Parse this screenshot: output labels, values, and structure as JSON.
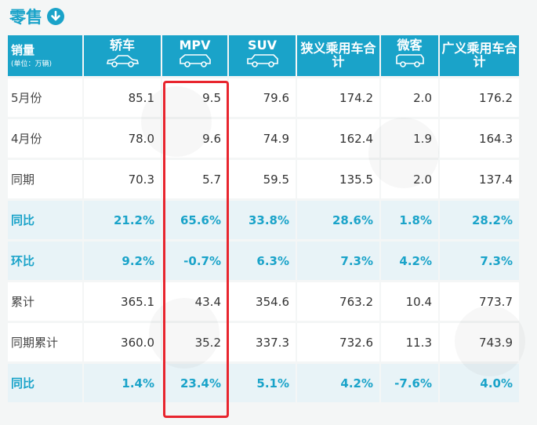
{
  "title": "零售",
  "header": {
    "row_label": "销量",
    "unit": "(单位：万辆)",
    "columns": [
      "轿车",
      "MPV",
      "SUV",
      "狭义乘用车合计",
      "微客",
      "广义乘用车合计"
    ]
  },
  "rows": [
    {
      "label": "5月份",
      "values": [
        "85.1",
        "9.5",
        "79.6",
        "174.2",
        "2.0",
        "176.2"
      ]
    },
    {
      "label": "4月份",
      "values": [
        "78.0",
        "9.6",
        "74.9",
        "162.4",
        "1.9",
        "164.3"
      ]
    },
    {
      "label": "同期",
      "values": [
        "70.3",
        "5.7",
        "59.5",
        "135.5",
        "2.0",
        "137.4"
      ]
    },
    {
      "label": "同比",
      "values": [
        "21.2%",
        "65.6%",
        "33.8%",
        "28.6%",
        "1.8%",
        "28.2%"
      ]
    },
    {
      "label": "环比",
      "values": [
        "9.2%",
        "-0.7%",
        "6.3%",
        "7.3%",
        "4.2%",
        "7.3%"
      ]
    },
    {
      "label": "累计",
      "values": [
        "365.1",
        "43.4",
        "354.6",
        "763.2",
        "10.4",
        "773.7"
      ]
    },
    {
      "label": "同期累计",
      "values": [
        "360.0",
        "35.2",
        "337.3",
        "732.6",
        "11.3",
        "743.9"
      ]
    },
    {
      "label": "同比",
      "values": [
        "1.4%",
        "23.4%",
        "5.1%",
        "4.2%",
        "-7.6%",
        "4.0%"
      ]
    }
  ],
  "colors": {
    "accent": "#1aa3c9",
    "highlight": "#e8252e",
    "ratio_row_bg": "#e8f3f7"
  }
}
